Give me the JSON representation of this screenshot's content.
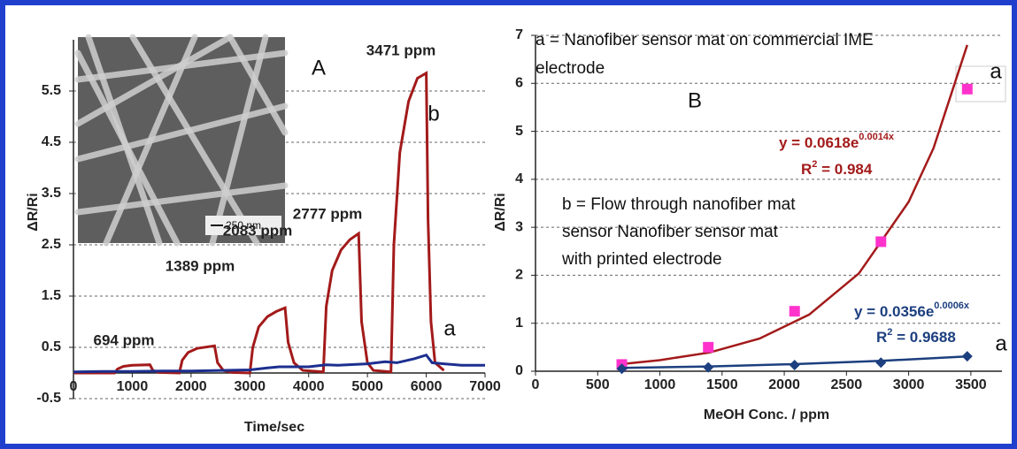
{
  "chart_data": [
    {
      "type": "line",
      "panel_label": "A",
      "y_label": "ΔR/Ri",
      "x_label": "Time/sec",
      "xlim": [
        0,
        7000
      ],
      "xticks": [
        0,
        1000,
        2000,
        3000,
        4000,
        5000,
        6000,
        7000
      ],
      "ylim": [
        -0.5,
        6.5
      ],
      "yticks": [
        -0.5,
        0.5,
        1.5,
        2.5,
        3.5,
        4.5,
        5.5
      ],
      "grid": true,
      "annotations": [
        "694 ppm",
        "1389 ppm",
        "2083 ppm",
        "2777 ppm",
        "3471 ppm"
      ],
      "inset_scale_bar": "250 nm",
      "series": [
        {
          "name": "b",
          "color": "#a31a1a",
          "x": [
            0,
            700,
            750,
            850,
            1000,
            1300,
            1350,
            1450,
            1800,
            1850,
            1950,
            2100,
            2400,
            2450,
            2550,
            2700,
            3000,
            3050,
            3150,
            3300,
            3450,
            3600,
            3650,
            3750,
            3900,
            4250,
            4300,
            4400,
            4550,
            4700,
            4850,
            4900,
            5000,
            5100,
            5400,
            5450,
            5550,
            5700,
            5850,
            6000,
            6030,
            6080,
            6150,
            6300
          ],
          "values": [
            0,
            0,
            0.08,
            0.13,
            0.15,
            0.16,
            0.05,
            0.01,
            0,
            0.25,
            0.4,
            0.48,
            0.53,
            0.2,
            0.05,
            0.01,
            0,
            0.5,
            0.9,
            1.1,
            1.2,
            1.27,
            0.6,
            0.2,
            0.05,
            0.02,
            1.3,
            2.0,
            2.4,
            2.6,
            2.72,
            1.0,
            0.2,
            0.05,
            0.02,
            2.5,
            4.3,
            5.3,
            5.75,
            5.85,
            3.0,
            1.0,
            0.2,
            0.05
          ]
        },
        {
          "name": "a",
          "color": "#1c2f8f",
          "x": [
            0,
            500,
            1000,
            1500,
            2000,
            2500,
            3000,
            3300,
            3500,
            4000,
            4300,
            4500,
            5000,
            5300,
            5500,
            5800,
            6000,
            6100,
            6300,
            6600,
            7000
          ],
          "values": [
            0.02,
            0.03,
            0.03,
            0.04,
            0.04,
            0.05,
            0.06,
            0.1,
            0.12,
            0.12,
            0.16,
            0.15,
            0.18,
            0.22,
            0.2,
            0.28,
            0.35,
            0.2,
            0.18,
            0.15,
            0.15
          ]
        }
      ]
    },
    {
      "type": "scatter",
      "panel_label": "B",
      "y_label": "ΔR/Ri",
      "x_label": "MeOH Conc. / ppm",
      "xlim": [
        0,
        3750
      ],
      "xticks": [
        0,
        500,
        1000,
        1500,
        2000,
        2500,
        3000,
        3500
      ],
      "ylim": [
        0,
        7
      ],
      "yticks": [
        0,
        1,
        2,
        3,
        4,
        5,
        6,
        7
      ],
      "grid": true,
      "notes": [
        "a = Nanofiber sensor mat on commercial IME",
        "electrode",
        "b = Flow through nanofiber mat",
        "sensor Nanofiber sensor mat",
        "with printed electrode"
      ],
      "series": [
        {
          "name": "a",
          "color": "#ff33cc",
          "marker": "square",
          "x": [
            694,
            1389,
            2083,
            2777,
            3471
          ],
          "values": [
            0.14,
            0.5,
            1.25,
            2.7,
            5.88
          ],
          "equation": {
            "text": "y = 0.0618e",
            "exponent": "0.0014x"
          },
          "r2": {
            "text": "R",
            "sup": "2",
            "rest": " = 0.984"
          },
          "trend": {
            "color": "#a31a1a",
            "x": [
              694,
              1000,
              1400,
              1800,
              2200,
              2600,
              3000,
              3200,
              3471
            ],
            "values": [
              0.15,
              0.23,
              0.39,
              0.68,
              1.18,
              2.04,
              3.53,
              4.65,
              6.8
            ]
          }
        },
        {
          "name": "a",
          "color": "#1c3f7f",
          "marker": "diamond",
          "x": [
            694,
            1389,
            2083,
            2777,
            3471
          ],
          "values": [
            0.05,
            0.08,
            0.13,
            0.18,
            0.31
          ],
          "equation": {
            "text": "y = 0.0356e",
            "exponent": "0.0006x"
          },
          "r2": {
            "text": "R",
            "sup": "2",
            "rest": " = 0.9688"
          },
          "trend": {
            "color": "#1c3f7f",
            "x": [
              694,
              1400,
              2100,
              2800,
              3471
            ],
            "values": [
              0.07,
              0.1,
              0.15,
              0.22,
              0.31
            ]
          }
        }
      ]
    }
  ]
}
